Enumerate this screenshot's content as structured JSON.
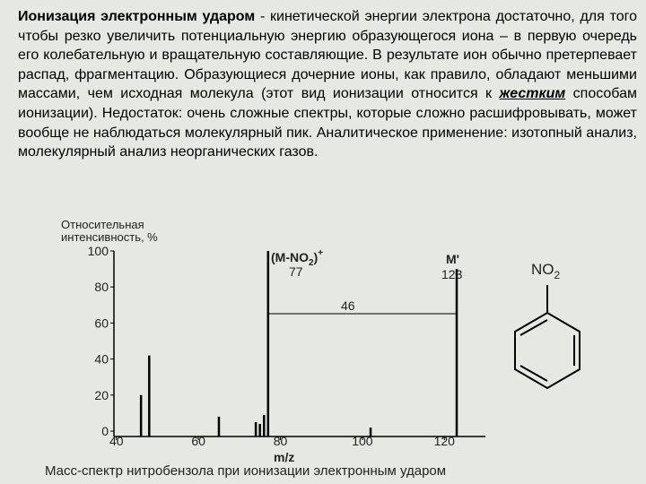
{
  "text": {
    "bold_lead": "Ионизация электронным ударом",
    "part1": " - кинетической энергии электрона достаточно, для того чтобы резко увеличить потенциальную энергию образующегося иона – в первую очередь его колебательную и вращательную составляющие. В результате ион обычно претерпевает распад, фрагментацию. Образующиеся дочерние ионы, как правило, обладают меньшими массами, чем исходная молекула (этот вид ионизации относится к ",
    "emphasis": "жестким",
    "part2": " способам ионизации). Недостаток: очень сложные спектры, которые сложно расшифровывать, может вообще не наблюдаться молекулярный пик. Аналитическое применение: изотопный анализ, молекулярный анализ неорганических газов."
  },
  "chart_data": {
    "type": "bar",
    "y_label": "Относительная интенсивность, %",
    "x_label": "m/z",
    "caption": "Масс-спектр нитробензола при ионизации электронным ударом",
    "x": [
      46,
      48,
      65,
      74,
      75,
      76,
      77,
      102,
      123
    ],
    "values": [
      20,
      42,
      8,
      5,
      4,
      9,
      100,
      2,
      90
    ],
    "color": "#000000",
    "xlim": [
      39.4,
      130
    ],
    "xticks": [
      40,
      60,
      80,
      100,
      120
    ],
    "ylim": [
      0,
      100
    ],
    "yticks": [
      0,
      20,
      40,
      60,
      80,
      100
    ],
    "annotations": {
      "fragment": {
        "text": "(M-NO",
        "sub": "2",
        "tail": ")",
        "sup": "+"
      },
      "fragment_mass": "77",
      "molecular": "M'",
      "molecular_mass": "123",
      "difference": "46",
      "structure": {
        "text": "NO",
        "sub": "2"
      }
    }
  }
}
